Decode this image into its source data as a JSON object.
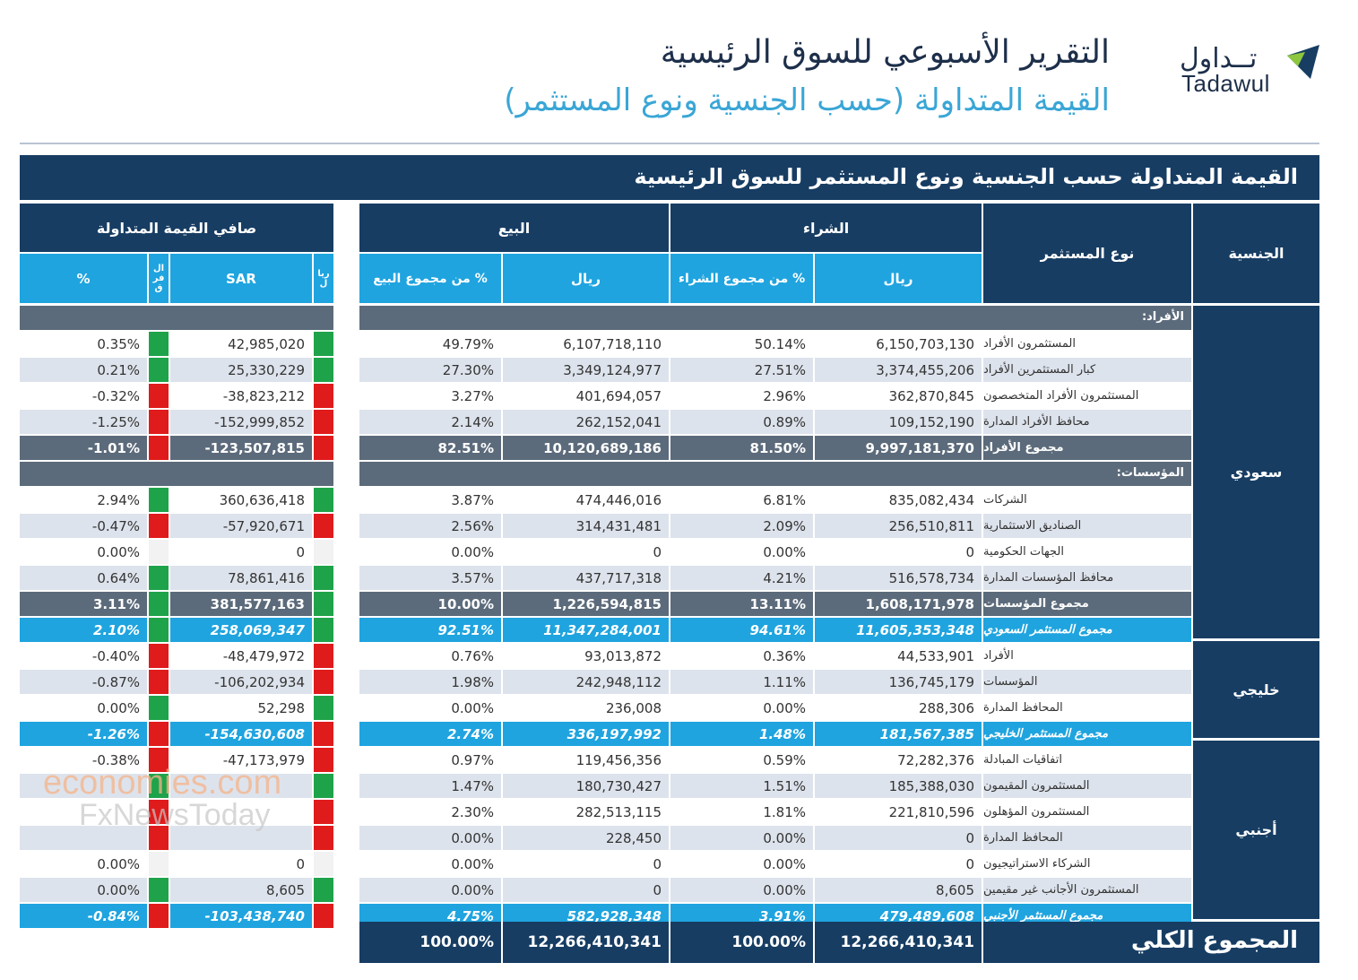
{
  "header": {
    "title": "التقرير الأسبوعي للسوق الرئيسية",
    "subtitle": "القيمة المتداولة (حسب الجنسية ونوع المستثمر)",
    "logo_ar": "تــداول",
    "logo_en": "Tadawul"
  },
  "banner": "القيمة المتداولة حسب الجنسية ونوع المستثمر للسوق الرئيسية",
  "colors": {
    "navy": "#173d63",
    "blue": "#1fa4df",
    "gray": "#5c6b7b",
    "green": "#1fa34a",
    "red": "#e01b1b"
  },
  "columns": {
    "nationality": "الجنسية",
    "investor_type": "نوع المستثمر",
    "buy": "الشراء",
    "sell": "البيع",
    "net": "صافي القيمة المتداولة",
    "riyal": "ريال",
    "buy_pct": "% من مجموع الشراء",
    "sell_pct": "% من مجموع البيع",
    "sar": "SAR",
    "pct": "%",
    "small_a": "ريا ل",
    "small_b": "ال فر ق"
  },
  "nationality_labels": {
    "saudi": "سعودي",
    "gcc": "خليجي",
    "foreign": "أجنبي"
  },
  "rows": [
    {
      "kind": "section",
      "label": "الأفراد:"
    },
    {
      "kind": "row",
      "label": "المستثمرون الأفراد",
      "buy": "6,150,703,130",
      "buy_pct": "50.14%",
      "sell": "6,107,718,110",
      "sell_pct": "49.79%",
      "net": "42,985,020",
      "net_pct": "0.35%",
      "flag": "green"
    },
    {
      "kind": "row",
      "label": "كبار المستثمرين الأفراد",
      "buy": "3,374,455,206",
      "buy_pct": "27.51%",
      "sell": "3,349,124,977",
      "sell_pct": "27.30%",
      "net": "25,330,229",
      "net_pct": "0.21%",
      "flag": "green"
    },
    {
      "kind": "row",
      "label": "المستثمرون الأفراد المتخصصون",
      "buy": "362,870,845",
      "buy_pct": "2.96%",
      "sell": "401,694,057",
      "sell_pct": "3.27%",
      "net": "-38,823,212",
      "net_pct": "-0.32%",
      "flag": "red"
    },
    {
      "kind": "row",
      "label": "محافظ الأفراد المدارة",
      "buy": "109,152,190",
      "buy_pct": "0.89%",
      "sell": "262,152,041",
      "sell_pct": "2.14%",
      "net": "-152,999,852",
      "net_pct": "-1.25%",
      "flag": "red"
    },
    {
      "kind": "sub",
      "label": "مجموع الأفراد",
      "buy": "9,997,181,370",
      "buy_pct": "81.50%",
      "sell": "10,120,689,186",
      "sell_pct": "82.51%",
      "net": "-123,507,815",
      "net_pct": "-1.01%",
      "flag": "red"
    },
    {
      "kind": "section",
      "label": "المؤسسات:"
    },
    {
      "kind": "row",
      "label": "الشركات",
      "buy": "835,082,434",
      "buy_pct": "6.81%",
      "sell": "474,446,016",
      "sell_pct": "3.87%",
      "net": "360,636,418",
      "net_pct": "2.94%",
      "flag": "green"
    },
    {
      "kind": "row",
      "label": "الصناديق الاستثمارية",
      "buy": "256,510,811",
      "buy_pct": "2.09%",
      "sell": "314,431,481",
      "sell_pct": "2.56%",
      "net": "-57,920,671",
      "net_pct": "-0.47%",
      "flag": "red"
    },
    {
      "kind": "row",
      "label": "الجهات الحكومية",
      "buy": "0",
      "buy_pct": "0.00%",
      "sell": "0",
      "sell_pct": "0.00%",
      "net": "0",
      "net_pct": "0.00%",
      "flag": "none"
    },
    {
      "kind": "row",
      "label": "محافظ المؤسسات المدارة",
      "buy": "516,578,734",
      "buy_pct": "4.21%",
      "sell": "437,717,318",
      "sell_pct": "3.57%",
      "net": "78,861,416",
      "net_pct": "0.64%",
      "flag": "green"
    },
    {
      "kind": "sub",
      "label": "مجموع المؤسسات",
      "buy": "1,608,171,978",
      "buy_pct": "13.11%",
      "sell": "1,226,594,815",
      "sell_pct": "10.00%",
      "net": "381,577,163",
      "net_pct": "3.11%",
      "flag": "green"
    },
    {
      "kind": "tot",
      "label": "مجموع المستثمر السعودي",
      "buy": "11,605,353,348",
      "buy_pct": "94.61%",
      "sell": "11,347,284,001",
      "sell_pct": "92.51%",
      "net": "258,069,347",
      "net_pct": "2.10%",
      "flag": "green"
    },
    {
      "kind": "row",
      "label": "الأفراد",
      "buy": "44,533,901",
      "buy_pct": "0.36%",
      "sell": "93,013,872",
      "sell_pct": "0.76%",
      "net": "-48,479,972",
      "net_pct": "-0.40%",
      "flag": "red"
    },
    {
      "kind": "row",
      "label": "المؤسسات",
      "buy": "136,745,179",
      "buy_pct": "1.11%",
      "sell": "242,948,112",
      "sell_pct": "1.98%",
      "net": "-106,202,934",
      "net_pct": "-0.87%",
      "flag": "red"
    },
    {
      "kind": "row",
      "label": "المحافظ المدارة",
      "buy": "288,306",
      "buy_pct": "0.00%",
      "sell": "236,008",
      "sell_pct": "0.00%",
      "net": "52,298",
      "net_pct": "0.00%",
      "flag": "green"
    },
    {
      "kind": "tot",
      "label": "مجموع المستثمر الخليجي",
      "buy": "181,567,385",
      "buy_pct": "1.48%",
      "sell": "336,197,992",
      "sell_pct": "2.74%",
      "net": "-154,630,608",
      "net_pct": "-1.26%",
      "flag": "red"
    },
    {
      "kind": "row",
      "label": "اتفاقيات المبادلة",
      "buy": "72,282,376",
      "buy_pct": "0.59%",
      "sell": "119,456,356",
      "sell_pct": "0.97%",
      "net": "-47,173,979",
      "net_pct": "-0.38%",
      "flag": "red"
    },
    {
      "kind": "row",
      "label": "المستثمرون المقيمون",
      "buy": "185,388,030",
      "buy_pct": "1.51%",
      "sell": "180,730,427",
      "sell_pct": "1.47%",
      "net": "",
      "net_pct": "",
      "flag": "green"
    },
    {
      "kind": "row",
      "label": "المستثمرون المؤهلون",
      "buy": "221,810,596",
      "buy_pct": "1.81%",
      "sell": "282,513,115",
      "sell_pct": "2.30%",
      "net": "",
      "net_pct": "",
      "flag": "red"
    },
    {
      "kind": "row",
      "label": "المحافظ المدارة",
      "buy": "0",
      "buy_pct": "0.00%",
      "sell": "228,450",
      "sell_pct": "0.00%",
      "net": "",
      "net_pct": "",
      "flag": "red"
    },
    {
      "kind": "row",
      "label": "الشركاء الاستراتيجيون",
      "buy": "0",
      "buy_pct": "0.00%",
      "sell": "0",
      "sell_pct": "0.00%",
      "net": "0",
      "net_pct": "0.00%",
      "flag": "none"
    },
    {
      "kind": "row",
      "label": "المستثمرون الأجانب غير مقيمين",
      "buy": "8,605",
      "buy_pct": "0.00%",
      "sell": "0",
      "sell_pct": "0.00%",
      "net": "8,605",
      "net_pct": "0.00%",
      "flag": "green"
    },
    {
      "kind": "tot",
      "label": "مجموع المستثمر الأجنبي",
      "buy": "479,489,608",
      "buy_pct": "3.91%",
      "sell": "582,928,348",
      "sell_pct": "4.75%",
      "net": "-103,438,740",
      "net_pct": "-0.84%",
      "flag": "red"
    }
  ],
  "grand_total": {
    "label": "المجموع الكلي",
    "buy": "12,266,410,341",
    "buy_pct": "100.00%",
    "sell": "12,266,410,341",
    "sell_pct": "100.00%"
  },
  "watermark": {
    "line1": "economies.com",
    "line2": "FxNewsToday"
  }
}
